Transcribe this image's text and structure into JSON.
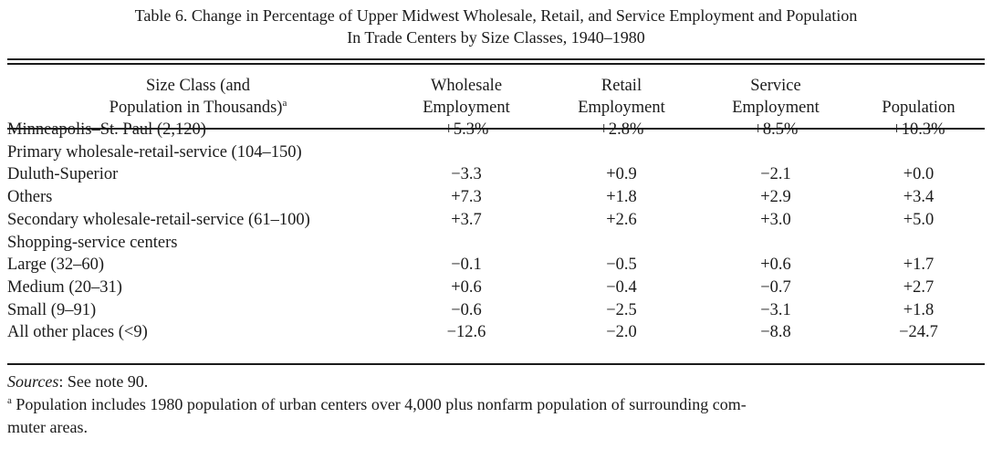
{
  "title": {
    "line1": "Table 6. Change in Percentage of Upper Midwest Wholesale, Retail, and Service Employment and Population",
    "line2": "In Trade Centers by Size Classes, 1940–1980"
  },
  "headers": {
    "size_class_line1": "Size Class (and",
    "size_class_line2": "Population in Thousands)",
    "size_class_sup": "a",
    "wholesale_line1": "Wholesale",
    "wholesale_line2": "Employment",
    "retail_line1": "Retail",
    "retail_line2": "Employment",
    "service_line1": "Service",
    "service_line2": "Employment",
    "population": "Population"
  },
  "rows": [
    {
      "label": "Minneapolis–St. Paul (2,120)",
      "indent": false,
      "wholesale": "+5.3%",
      "retail": "+2.8%",
      "service": "+8.5%",
      "population": "+10.3%"
    },
    {
      "label": "Primary wholesale-retail-service (104–150)",
      "indent": false,
      "wholesale": "",
      "retail": "",
      "service": "",
      "population": ""
    },
    {
      "label": "Duluth-Superior",
      "indent": true,
      "wholesale": "−3.3",
      "retail": "+0.9",
      "service": "−2.1",
      "population": "+0.0"
    },
    {
      "label": "Others",
      "indent": true,
      "wholesale": "+7.3",
      "retail": "+1.8",
      "service": "+2.9",
      "population": "+3.4"
    },
    {
      "label": "Secondary wholesale-retail-service (61–100)",
      "indent": false,
      "wholesale": "+3.7",
      "retail": "+2.6",
      "service": "+3.0",
      "population": "+5.0"
    },
    {
      "label": "Shopping-service centers",
      "indent": false,
      "wholesale": "",
      "retail": "",
      "service": "",
      "population": ""
    },
    {
      "label": "Large (32–60)",
      "indent": true,
      "wholesale": "−0.1",
      "retail": "−0.5",
      "service": "+0.6",
      "population": "+1.7"
    },
    {
      "label": "Medium (20–31)",
      "indent": true,
      "wholesale": "+0.6",
      "retail": "−0.4",
      "service": "−0.7",
      "population": "+2.7"
    },
    {
      "label": "Small (9–91)",
      "indent": true,
      "wholesale": "−0.6",
      "retail": "−2.5",
      "service": "−3.1",
      "population": "+1.8"
    },
    {
      "label": "All other places (<9)",
      "indent": false,
      "wholesale": "−12.6",
      "retail": "−2.0",
      "service": "−8.8",
      "population": "−24.7"
    }
  ],
  "notes": {
    "sources_label": "Sources",
    "sources_text": ": See note 90.",
    "footnote_marker": "a",
    "footnote_line1": " Population includes 1980 population of urban centers over 4,000 plus nonfarm population of surrounding com-",
    "footnote_line2": "muter areas."
  }
}
